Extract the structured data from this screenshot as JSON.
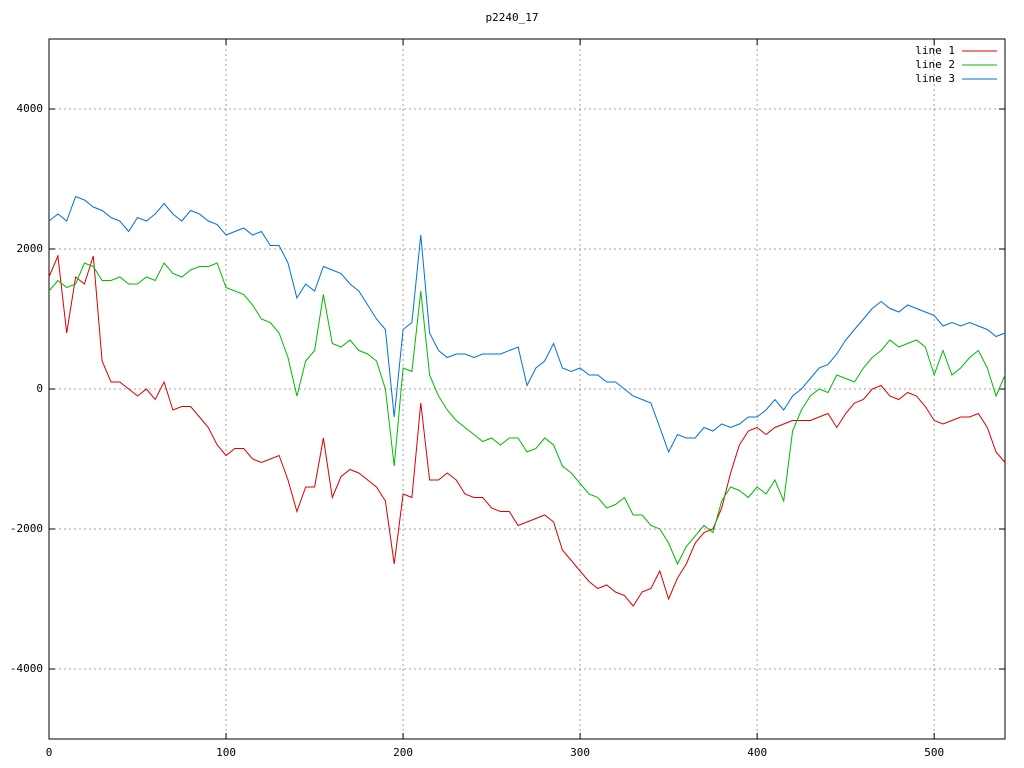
{
  "chart_data": {
    "type": "line",
    "title": "p2240_17",
    "x": [
      0,
      5,
      10,
      15,
      20,
      25,
      30,
      35,
      40,
      45,
      50,
      55,
      60,
      65,
      70,
      75,
      80,
      85,
      90,
      95,
      100,
      105,
      110,
      115,
      120,
      125,
      130,
      135,
      140,
      145,
      150,
      155,
      160,
      165,
      170,
      175,
      180,
      185,
      190,
      195,
      200,
      205,
      210,
      215,
      220,
      225,
      230,
      235,
      240,
      245,
      250,
      255,
      260,
      265,
      270,
      275,
      280,
      285,
      290,
      295,
      300,
      305,
      310,
      315,
      320,
      325,
      330,
      335,
      340,
      345,
      350,
      355,
      360,
      365,
      370,
      375,
      380,
      385,
      390,
      395,
      400,
      405,
      410,
      415,
      420,
      425,
      430,
      435,
      440,
      445,
      450,
      455,
      460,
      465,
      470,
      475,
      480,
      485,
      490,
      495,
      500,
      505,
      510,
      515,
      520,
      525,
      530,
      535,
      540
    ],
    "series": [
      {
        "name": "line 1",
        "color": "#dd0000",
        "values": [
          1600,
          1900,
          800,
          1600,
          1500,
          1900,
          400,
          100,
          100,
          0,
          -100,
          0,
          -150,
          100,
          -300,
          -250,
          -250,
          -400,
          -550,
          -800,
          -950,
          -850,
          -850,
          -1000,
          -1050,
          -1000,
          -950,
          -1300,
          -1750,
          -1400,
          -1400,
          -700,
          -1550,
          -1250,
          -1150,
          -1200,
          -1300,
          -1400,
          -1600,
          -2500,
          -1500,
          -1550,
          -200,
          -1300,
          -1300,
          -1200,
          -1300,
          -1500,
          -1550,
          -1550,
          -1700,
          -1750,
          -1750,
          -1950,
          -1900,
          -1850,
          -1800,
          -1900,
          -2300,
          -2450,
          -2600,
          -2750,
          -2850,
          -2800,
          -2900,
          -2950,
          -3100,
          -2900,
          -2850,
          -2600,
          -3000,
          -2700,
          -2500,
          -2200,
          -2050,
          -2000,
          -1700,
          -1200,
          -800,
          -600,
          -550,
          -650,
          -550,
          -500,
          -450,
          -450,
          -450,
          -400,
          -350,
          -550,
          -350,
          -200,
          -150,
          0,
          50,
          -100,
          -150,
          -50,
          -100,
          -250,
          -450,
          -500,
          -450,
          -400,
          -400,
          -350,
          -550,
          -900,
          -1050
        ]
      },
      {
        "name": "line 2",
        "color": "#00bb00",
        "values": [
          1400,
          1550,
          1450,
          1500,
          1800,
          1750,
          1550,
          1550,
          1600,
          1500,
          1500,
          1600,
          1550,
          1800,
          1650,
          1600,
          1700,
          1750,
          1750,
          1800,
          1450,
          1400,
          1350,
          1200,
          1000,
          950,
          800,
          450,
          -100,
          400,
          550,
          1350,
          650,
          600,
          700,
          550,
          500,
          400,
          0,
          -1100,
          300,
          250,
          1400,
          200,
          -100,
          -300,
          -450,
          -550,
          -650,
          -750,
          -700,
          -800,
          -700,
          -700,
          -900,
          -850,
          -700,
          -800,
          -1100,
          -1200,
          -1350,
          -1500,
          -1550,
          -1700,
          -1650,
          -1550,
          -1800,
          -1800,
          -1950,
          -2000,
          -2200,
          -2500,
          -2250,
          -2100,
          -1950,
          -2050,
          -1600,
          -1400,
          -1450,
          -1550,
          -1400,
          -1500,
          -1300,
          -1600,
          -600,
          -300,
          -100,
          0,
          -50,
          200,
          150,
          100,
          300,
          450,
          550,
          700,
          600,
          650,
          700,
          600,
          200,
          550,
          200,
          300,
          450,
          550,
          300,
          -100,
          200
        ]
      },
      {
        "name": "line 3",
        "color": "#0070dd",
        "values": [
          2400,
          2500,
          2400,
          2750,
          2700,
          2600,
          2550,
          2450,
          2400,
          2250,
          2450,
          2400,
          2500,
          2650,
          2500,
          2400,
          2550,
          2500,
          2400,
          2350,
          2200,
          2250,
          2300,
          2200,
          2250,
          2050,
          2050,
          1800,
          1300,
          1500,
          1400,
          1750,
          1700,
          1650,
          1500,
          1400,
          1200,
          1000,
          850,
          -400,
          850,
          950,
          2200,
          800,
          550,
          450,
          500,
          500,
          450,
          500,
          500,
          500,
          550,
          600,
          50,
          300,
          400,
          650,
          300,
          250,
          300,
          200,
          200,
          100,
          100,
          0,
          -100,
          -150,
          -200,
          -550,
          -900,
          -650,
          -700,
          -700,
          -550,
          -600,
          -500,
          -550,
          -500,
          -400,
          -400,
          -300,
          -150,
          -300,
          -100,
          0,
          150,
          300,
          350,
          500,
          700,
          850,
          1000,
          1150,
          1250,
          1150,
          1100,
          1200,
          1150,
          1100,
          1050,
          900,
          950,
          900,
          950,
          900,
          850,
          750,
          800
        ]
      }
    ],
    "xlim": [
      0,
      540
    ],
    "xticks": [
      0,
      100,
      200,
      300,
      400,
      500
    ],
    "ylim": [
      -5000,
      5000
    ],
    "yticks": [
      -4000,
      -2000,
      0,
      2000,
      4000
    ],
    "grid": true,
    "legend": "top-right"
  }
}
